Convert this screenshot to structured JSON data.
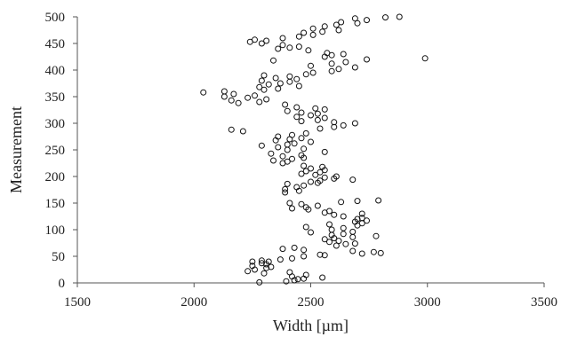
{
  "chart_data": {
    "type": "scatter",
    "title": "",
    "xlabel": "Width [µm]",
    "ylabel": "Measurement",
    "xlim": [
      1500,
      3500
    ],
    "ylim": [
      0,
      500
    ],
    "xticks": [
      "1500",
      "2000",
      "2500",
      "3000",
      "3500"
    ],
    "yticks": [
      "0",
      "50",
      "100",
      "150",
      "200",
      "250",
      "300",
      "350",
      "400",
      "450",
      "500"
    ],
    "grid": false,
    "marker": "open-circle",
    "series": [
      {
        "points": [
          [
            2280,
            1
          ],
          [
            2395,
            3
          ],
          [
            2430,
            5
          ],
          [
            2445,
            7
          ],
          [
            2470,
            8
          ],
          [
            2550,
            10
          ],
          [
            2420,
            12
          ],
          [
            2480,
            15
          ],
          [
            2300,
            18
          ],
          [
            2410,
            20
          ],
          [
            2230,
            22
          ],
          [
            2260,
            25
          ],
          [
            2310,
            28
          ],
          [
            2330,
            30
          ],
          [
            2250,
            32
          ],
          [
            2310,
            35
          ],
          [
            2290,
            37
          ],
          [
            2320,
            40
          ],
          [
            2250,
            40
          ],
          [
            2290,
            42
          ],
          [
            2370,
            44
          ],
          [
            2420,
            46
          ],
          [
            2470,
            50
          ],
          [
            2560,
            52
          ],
          [
            2540,
            53
          ],
          [
            2720,
            55
          ],
          [
            2800,
            56
          ],
          [
            2770,
            58
          ],
          [
            2680,
            60
          ],
          [
            2470,
            62
          ],
          [
            2380,
            64
          ],
          [
            2430,
            66
          ],
          [
            2610,
            70
          ],
          [
            2650,
            73
          ],
          [
            2690,
            74
          ],
          [
            2580,
            77
          ],
          [
            2620,
            79
          ],
          [
            2560,
            82
          ],
          [
            2600,
            84
          ],
          [
            2680,
            86
          ],
          [
            2780,
            88
          ],
          [
            2590,
            90
          ],
          [
            2640,
            92
          ],
          [
            2500,
            95
          ],
          [
            2680,
            96
          ],
          [
            2590,
            100
          ],
          [
            2640,
            103
          ],
          [
            2480,
            105
          ],
          [
            2700,
            108
          ],
          [
            2580,
            110
          ],
          [
            2720,
            112
          ],
          [
            2690,
            115
          ],
          [
            2740,
            117
          ],
          [
            2700,
            120
          ],
          [
            2720,
            122
          ],
          [
            2640,
            125
          ],
          [
            2600,
            128
          ],
          [
            2720,
            130
          ],
          [
            2560,
            132
          ],
          [
            2580,
            135
          ],
          [
            2490,
            138
          ],
          [
            2420,
            140
          ],
          [
            2480,
            142
          ],
          [
            2530,
            145
          ],
          [
            2460,
            148
          ],
          [
            2410,
            150
          ],
          [
            2630,
            152
          ],
          [
            2700,
            154
          ],
          [
            2790,
            155
          ],
          [
            2390,
            170
          ],
          [
            2450,
            173
          ],
          [
            2390,
            176
          ],
          [
            2440,
            180
          ],
          [
            2470,
            183
          ],
          [
            2400,
            186
          ],
          [
            2530,
            188
          ],
          [
            2500,
            190
          ],
          [
            2540,
            192
          ],
          [
            2680,
            194
          ],
          [
            2600,
            196
          ],
          [
            2560,
            198
          ],
          [
            2610,
            200
          ],
          [
            2520,
            203
          ],
          [
            2460,
            205
          ],
          [
            2540,
            208
          ],
          [
            2480,
            210
          ],
          [
            2560,
            212
          ],
          [
            2500,
            215
          ],
          [
            2550,
            218
          ],
          [
            2470,
            220
          ],
          [
            2380,
            225
          ],
          [
            2400,
            228
          ],
          [
            2340,
            230
          ],
          [
            2420,
            233
          ],
          [
            2470,
            235
          ],
          [
            2380,
            238
          ],
          [
            2460,
            240
          ],
          [
            2330,
            243
          ],
          [
            2560,
            246
          ],
          [
            2400,
            250
          ],
          [
            2470,
            252
          ],
          [
            2360,
            255
          ],
          [
            2290,
            258
          ],
          [
            2400,
            260
          ],
          [
            2430,
            262
          ],
          [
            2500,
            265
          ],
          [
            2350,
            268
          ],
          [
            2410,
            270
          ],
          [
            2460,
            272
          ],
          [
            2360,
            275
          ],
          [
            2420,
            278
          ],
          [
            2480,
            281
          ],
          [
            2210,
            285
          ],
          [
            2160,
            288
          ],
          [
            2540,
            290
          ],
          [
            2600,
            293
          ],
          [
            2640,
            296
          ],
          [
            2690,
            300
          ],
          [
            2600,
            302
          ],
          [
            2460,
            304
          ],
          [
            2530,
            306
          ],
          [
            2560,
            310
          ],
          [
            2440,
            312
          ],
          [
            2500,
            315
          ],
          [
            2530,
            318
          ],
          [
            2460,
            320
          ],
          [
            2400,
            323
          ],
          [
            2560,
            326
          ],
          [
            2520,
            328
          ],
          [
            2440,
            330
          ],
          [
            2390,
            335
          ],
          [
            2190,
            338
          ],
          [
            2280,
            340
          ],
          [
            2160,
            343
          ],
          [
            2310,
            345
          ],
          [
            2230,
            348
          ],
          [
            2130,
            350
          ],
          [
            2260,
            352
          ],
          [
            2170,
            355
          ],
          [
            2040,
            358
          ],
          [
            2130,
            360
          ],
          [
            2300,
            363
          ],
          [
            2360,
            365
          ],
          [
            2280,
            368
          ],
          [
            2450,
            370
          ],
          [
            2320,
            373
          ],
          [
            2370,
            375
          ],
          [
            2410,
            378
          ],
          [
            2290,
            380
          ],
          [
            2440,
            383
          ],
          [
            2350,
            385
          ],
          [
            2410,
            388
          ],
          [
            2300,
            390
          ],
          [
            2480,
            392
          ],
          [
            2510,
            395
          ],
          [
            2590,
            398
          ],
          [
            2620,
            402
          ],
          [
            2690,
            405
          ],
          [
            2500,
            408
          ],
          [
            2590,
            412
          ],
          [
            2650,
            415
          ],
          [
            2340,
            418
          ],
          [
            2740,
            420
          ],
          [
            2990,
            422
          ],
          [
            2560,
            425
          ],
          [
            2590,
            428
          ],
          [
            2640,
            430
          ],
          [
            2570,
            432
          ],
          [
            2490,
            437
          ],
          [
            2360,
            440
          ],
          [
            2410,
            442
          ],
          [
            2450,
            444
          ],
          [
            2380,
            447
          ],
          [
            2290,
            450
          ],
          [
            2240,
            453
          ],
          [
            2310,
            455
          ],
          [
            2260,
            457
          ],
          [
            2380,
            460
          ],
          [
            2450,
            463
          ],
          [
            2510,
            466
          ],
          [
            2470,
            470
          ],
          [
            2550,
            472
          ],
          [
            2620,
            475
          ],
          [
            2510,
            478
          ],
          [
            2560,
            482
          ],
          [
            2610,
            485
          ],
          [
            2700,
            488
          ],
          [
            2630,
            490
          ],
          [
            2740,
            494
          ],
          [
            2690,
            497
          ],
          [
            2820,
            499
          ],
          [
            2880,
            500
          ]
        ]
      }
    ]
  }
}
